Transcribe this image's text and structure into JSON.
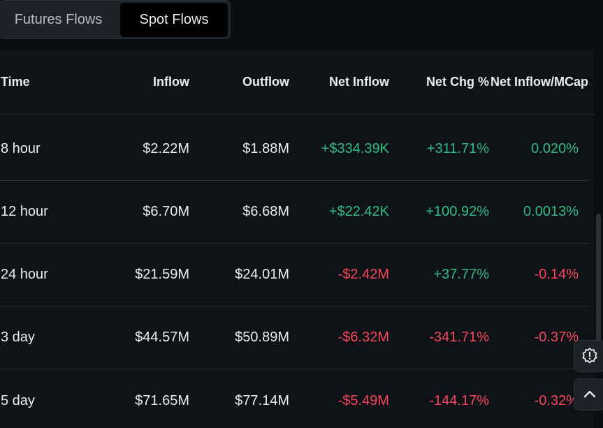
{
  "tabs": [
    {
      "label": "Futures Flows",
      "active": false
    },
    {
      "label": "Spot Flows",
      "active": true
    }
  ],
  "table": {
    "headers": {
      "time": "Time",
      "inflow": "Inflow",
      "outflow": "Outflow",
      "net_inflow": "Net Inflow",
      "net_chg": "Net Chg %",
      "net_mcap": "Net Inflow/MCap"
    },
    "rows": [
      {
        "time": "8 hour",
        "inflow": "$2.22M",
        "outflow": "$1.88M",
        "net_inflow": "+$334.39K",
        "net_chg": "+311.71%",
        "net_mcap": "0.020%"
      },
      {
        "time": "12 hour",
        "inflow": "$6.70M",
        "outflow": "$6.68M",
        "net_inflow": "+$22.42K",
        "net_chg": "+100.92%",
        "net_mcap": "0.0013%"
      },
      {
        "time": "24 hour",
        "inflow": "$21.59M",
        "outflow": "$24.01M",
        "net_inflow": "-$2.42M",
        "net_chg": "+37.77%",
        "net_mcap": "-0.14%"
      },
      {
        "time": "3 day",
        "inflow": "$44.57M",
        "outflow": "$50.89M",
        "net_inflow": "-$6.32M",
        "net_chg": "-341.71%",
        "net_mcap": "-0.37%"
      },
      {
        "time": "5 day",
        "inflow": "$71.65M",
        "outflow": "$77.14M",
        "net_inflow": "-$5.49M",
        "net_chg": "-144.17%",
        "net_mcap": "-0.32%"
      }
    ]
  },
  "colors": {
    "positive": "#2ebd85",
    "negative": "#f6465d",
    "background": "#0b0e11"
  },
  "floating_buttons": {
    "alert_icon": "alert-badge-icon",
    "up_icon": "chevron-up-icon"
  }
}
